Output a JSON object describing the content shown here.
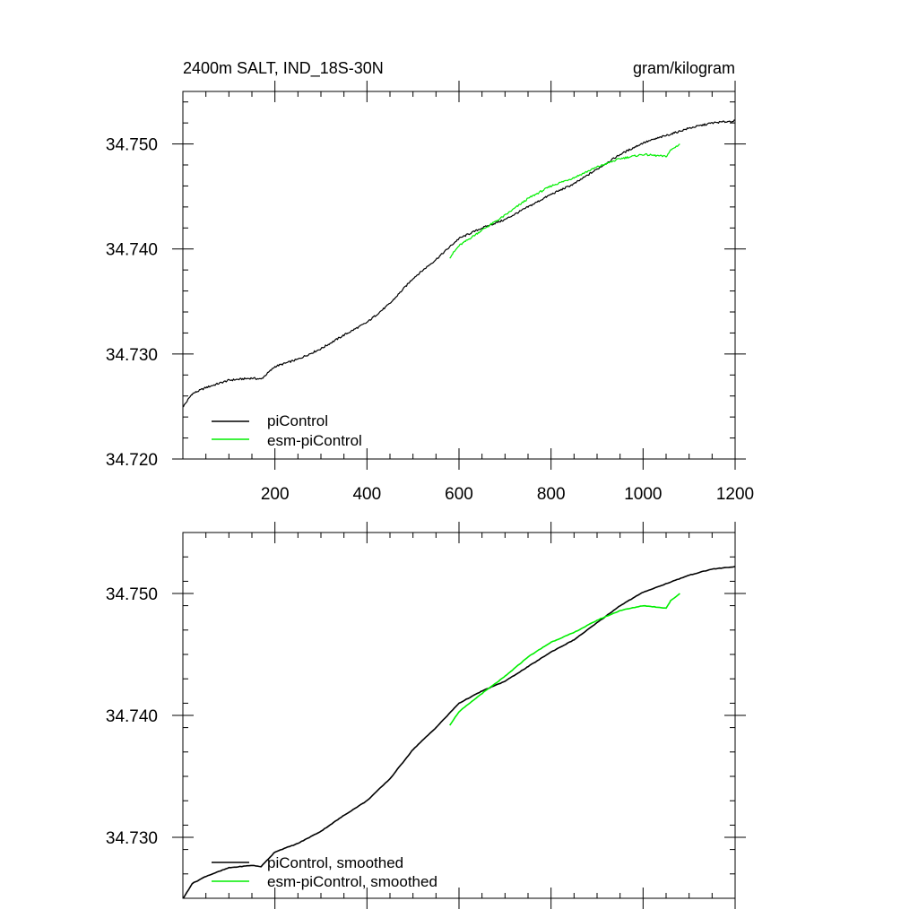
{
  "chart_data": [
    {
      "type": "line",
      "title_left": "2400m SALT, IND_18S-30N",
      "title_right": "gram/kilogram",
      "xlabel": "",
      "ylabel": "",
      "xlim": [
        0,
        1200
      ],
      "ylim": [
        34.72,
        34.755
      ],
      "xticks": [
        200,
        400,
        600,
        800,
        1000,
        1200
      ],
      "xtick_labels": [
        "200",
        "400",
        "600",
        "800",
        "1000",
        "1200"
      ],
      "yticks": [
        34.72,
        34.73,
        34.74,
        34.75
      ],
      "ytick_labels": [
        "34.720",
        "34.730",
        "34.740",
        "34.750"
      ],
      "legend_position": "bottom-left",
      "series": [
        {
          "name": "piControl",
          "color": "#000000",
          "x": [
            1,
            20,
            50,
            100,
            150,
            170,
            200,
            250,
            300,
            350,
            400,
            450,
            500,
            550,
            600,
            650,
            700,
            750,
            800,
            850,
            900,
            950,
            1000,
            1050,
            1100,
            1150,
            1200
          ],
          "y": [
            34.725,
            34.7262,
            34.7268,
            34.7275,
            34.7277,
            34.7276,
            34.7288,
            34.7295,
            34.7305,
            34.7318,
            34.733,
            34.7348,
            34.7372,
            34.739,
            34.741,
            34.742,
            34.7428,
            34.744,
            34.7452,
            34.7462,
            34.7476,
            34.749,
            34.7501,
            34.7508,
            34.7515,
            34.752,
            34.7522
          ]
        },
        {
          "name": "esm-piControl",
          "color": "#00ee00",
          "x": [
            580,
            600,
            650,
            700,
            750,
            800,
            850,
            900,
            950,
            1000,
            1050,
            1060,
            1080
          ],
          "y": [
            34.7392,
            34.7403,
            34.7418,
            34.7432,
            34.7448,
            34.746,
            34.7468,
            34.7478,
            34.7486,
            34.749,
            34.7488,
            34.7494,
            34.75
          ]
        }
      ]
    },
    {
      "type": "line",
      "xlabel": "",
      "ylabel": "",
      "xlim": [
        0,
        1200
      ],
      "ylim": [
        34.725,
        34.755
      ],
      "xticks": [
        200,
        400,
        600,
        800,
        1000,
        1200
      ],
      "yticks": [
        34.73,
        34.74,
        34.75
      ],
      "ytick_labels": [
        "34.730",
        "34.740",
        "34.750"
      ],
      "legend_position": "bottom-left",
      "series": [
        {
          "name": "piControl, smoothed",
          "color": "#000000",
          "x": [
            1,
            20,
            50,
            100,
            150,
            170,
            200,
            250,
            300,
            350,
            400,
            450,
            500,
            550,
            600,
            650,
            700,
            750,
            800,
            850,
            900,
            950,
            1000,
            1050,
            1100,
            1150,
            1200
          ],
          "y": [
            34.725,
            34.7262,
            34.7268,
            34.7275,
            34.7277,
            34.7276,
            34.7288,
            34.7295,
            34.7305,
            34.7318,
            34.733,
            34.7348,
            34.7372,
            34.739,
            34.741,
            34.742,
            34.7428,
            34.744,
            34.7452,
            34.7462,
            34.7476,
            34.749,
            34.7501,
            34.7508,
            34.7515,
            34.752,
            34.7522
          ]
        },
        {
          "name": "esm-piControl, smoothed",
          "color": "#00ee00",
          "x": [
            580,
            600,
            650,
            700,
            750,
            800,
            850,
            900,
            950,
            1000,
            1050,
            1060,
            1080
          ],
          "y": [
            34.7392,
            34.7403,
            34.7418,
            34.7432,
            34.7448,
            34.746,
            34.7468,
            34.7478,
            34.7486,
            34.749,
            34.7488,
            34.7494,
            34.75
          ]
        }
      ]
    }
  ]
}
